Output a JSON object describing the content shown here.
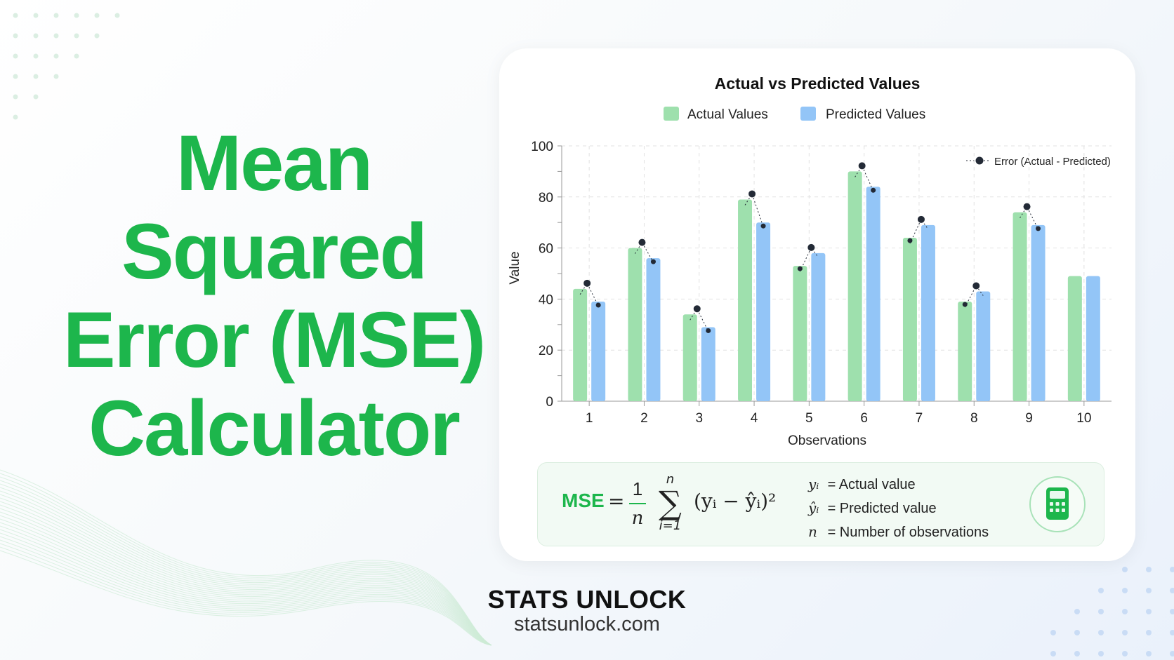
{
  "hero": {
    "lines": [
      "Mean",
      "Squared",
      "Error (MSE)",
      "Calculator"
    ]
  },
  "colors": {
    "brand_green": "#1db64c",
    "actual": "#9ee0ad",
    "predicted": "#93c5f7",
    "error": "#232a36"
  },
  "chart_data": {
    "type": "bar",
    "title": "Actual vs Predicted Values",
    "xlabel": "Observations",
    "ylabel": "Value",
    "ylim": [
      0,
      100
    ],
    "yticks": [
      0,
      20,
      40,
      60,
      80,
      100
    ],
    "grid": true,
    "legend_placement": "top",
    "categories": [
      "1",
      "2",
      "3",
      "4",
      "5",
      "6",
      "7",
      "8",
      "9",
      "10"
    ],
    "series": [
      {
        "name": "Actual Values",
        "color": "#9ee0ad",
        "values": [
          44,
          60,
          34,
          79,
          53,
          90,
          64,
          39,
          74,
          49
        ]
      },
      {
        "name": "Predicted Values",
        "color": "#93c5f7",
        "values": [
          39,
          56,
          29,
          70,
          58,
          84,
          69,
          43,
          69,
          49
        ]
      }
    ],
    "annotation_legend": "Error (Actual - Predicted)"
  },
  "formula": {
    "lhs": "MSE",
    "equals": "=",
    "numerator": "1",
    "denominator": "n",
    "sum_upper": "n",
    "sum_lower": "i=1",
    "sum_symbol": "∑",
    "expression": "(yᵢ − ŷᵢ)²",
    "definitions": [
      {
        "symbol": "yᵢ",
        "text": "= Actual value"
      },
      {
        "symbol": "ŷᵢ",
        "text": "= Predicted value"
      },
      {
        "symbol": "n",
        "text": "= Number of observations"
      }
    ],
    "icon": "calculator-icon"
  },
  "brand": {
    "name": "STATS UNLOCK",
    "url": "statsunlock.com"
  }
}
